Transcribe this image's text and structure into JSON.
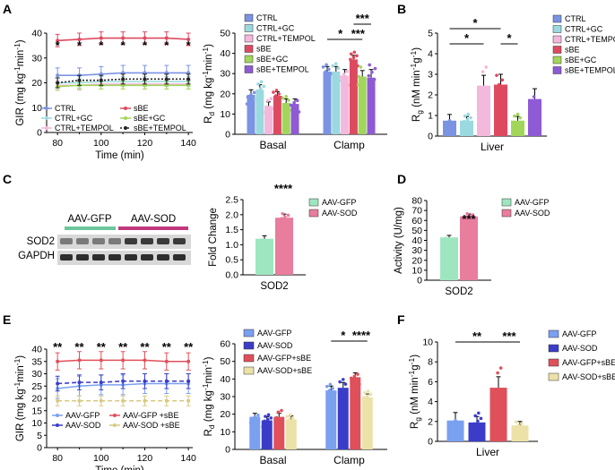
{
  "panels": {
    "A": "A",
    "B": "B",
    "C": "C",
    "D": "D",
    "E": "E",
    "F": "F"
  },
  "colors": {
    "blue": "#7b93e3",
    "lightblue": "#9ad9df",
    "pink": "#f4b8dc",
    "red": "#dd4a60",
    "green": "#a2d65a",
    "purple": "#8e5ad6",
    "gfp": "#9ee6bf",
    "sod": "#e87d9e",
    "e_gfp": "#7aa0f0",
    "e_sod": "#3b3dc8",
    "e_gfpsbe": "#e0505a",
    "e_sodsbe": "#ece2a8",
    "e_line_sodsbe": "#d8c880"
  },
  "chart_data": [
    {
      "id": "A_gir",
      "type": "line",
      "xlabel": "Time (min)",
      "ylabel": "GIR (mg kg-1min-1)",
      "ylabel_main": "GIR (mg kg",
      "ylabel_sup1": "-1",
      "ylabel_mid": "min",
      "ylabel_sup2": "-1",
      "ylabel_end": ")",
      "x": [
        80,
        90,
        100,
        110,
        120,
        130,
        140
      ],
      "xticks": [
        "80",
        "100",
        "120",
        "140"
      ],
      "xlim": [
        75,
        142
      ],
      "ylim": [
        0,
        40
      ],
      "yticks": [
        "0",
        "10",
        "20",
        "30",
        "40"
      ],
      "series": [
        {
          "name": "CTRL",
          "values": [
            23,
            23,
            23.5,
            24,
            24,
            24,
            24
          ],
          "err": [
            3,
            3,
            3,
            3,
            3,
            3,
            3
          ],
          "color": "#7b93e3",
          "dash": ""
        },
        {
          "name": "CTRL+GC",
          "values": [
            20,
            20,
            20.5,
            20.5,
            20.5,
            20.5,
            20.5
          ],
          "err": [
            2,
            2,
            2,
            2,
            2,
            2,
            2
          ],
          "color": "#9ad9df",
          "dash": ""
        },
        {
          "name": "CTRL+TEMPOL",
          "values": [
            19,
            19,
            19.5,
            19.5,
            19.5,
            19.5,
            19.5
          ],
          "err": [
            2,
            2,
            2,
            2,
            2,
            2,
            2
          ],
          "color": "#f4b8dc",
          "dash": ""
        },
        {
          "name": "sBE",
          "values": [
            37,
            37.5,
            38,
            38,
            38,
            38,
            37.5
          ],
          "err": [
            2.5,
            2.5,
            2.5,
            2.5,
            2.5,
            2.5,
            2.5
          ],
          "color": "#dd4a60",
          "dash": ""
        },
        {
          "name": "sBE+GC",
          "values": [
            18.5,
            19,
            19,
            19,
            19,
            19,
            19
          ],
          "err": [
            1.5,
            1.5,
            1.5,
            1.5,
            1.5,
            1.5,
            1.5
          ],
          "color": "#a2d65a",
          "dash": ""
        },
        {
          "name": "sBE+TEMPOL",
          "values": [
            20,
            21,
            21,
            21.5,
            21.5,
            21.5,
            21.5
          ],
          "err": [
            2,
            2,
            2,
            2,
            2,
            2,
            2
          ],
          "color": "#222222",
          "dash": "2,2"
        }
      ],
      "annotations": [
        "*",
        "*",
        "*",
        "*",
        "*",
        "*",
        "*"
      ]
    },
    {
      "id": "A_rd",
      "type": "bar",
      "ylabel": "Rd (mg kg-1min-1)",
      "ylabel_main": "R",
      "ylabel_sub": "d",
      "ylabel_rest": " (mg kg",
      "ylabel_sup1": "-1",
      "ylabel_mid": "min",
      "ylabel_sup2": "-1",
      "ylabel_end": ")",
      "categories": [
        "Basal",
        "Clamp"
      ],
      "ylim": [
        0,
        50
      ],
      "yticks": [
        "0",
        "10",
        "20",
        "30",
        "40",
        "50"
      ],
      "series": [
        {
          "name": "CTRL",
          "values": [
            19.5,
            31
          ],
          "err": [
            2.5,
            2.5
          ],
          "color": "#7b93e3"
        },
        {
          "name": "CTRL+GC",
          "values": [
            22,
            31
          ],
          "err": [
            2.5,
            2.5
          ],
          "color": "#9ad9df"
        },
        {
          "name": "CTRL+TEMPOL",
          "values": [
            14,
            29
          ],
          "err": [
            2,
            3
          ],
          "color": "#f4b8dc"
        },
        {
          "name": "sBE",
          "values": [
            19,
            37
          ],
          "err": [
            2,
            2
          ],
          "color": "#dd4a60"
        },
        {
          "name": "sBE+GC",
          "values": [
            15.5,
            28.5
          ],
          "err": [
            2,
            3
          ],
          "color": "#a2d65a"
        },
        {
          "name": "sBE+TEMPOL",
          "values": [
            15,
            28
          ],
          "err": [
            2.5,
            4
          ],
          "color": "#8e5ad6"
        }
      ],
      "annotations": [
        "*",
        "***",
        "***"
      ]
    },
    {
      "id": "B_rg",
      "type": "bar",
      "ylabel": "Rg (nM min-1g-1)",
      "ylabel_main": "R",
      "ylabel_sub": "g",
      "ylabel_rest": " (nM min",
      "ylabel_sup1": "-1",
      "ylabel_mid": "g",
      "ylabel_sup2": "-1",
      "ylabel_end": ")",
      "categories": [
        "Liver"
      ],
      "ylim": [
        0,
        5
      ],
      "yticks": [
        "0",
        "1",
        "2",
        "3",
        "4",
        "5"
      ],
      "series": [
        {
          "name": "CTRL",
          "values": [
            0.75
          ],
          "err": [
            0.3
          ],
          "color": "#7b93e3"
        },
        {
          "name": "CTRL+GC",
          "values": [
            0.75
          ],
          "err": [
            0.2
          ],
          "color": "#9ad9df"
        },
        {
          "name": "CTRL+TEMPOL",
          "values": [
            2.45
          ],
          "err": [
            0.5
          ],
          "color": "#f4b8dc"
        },
        {
          "name": "sBE",
          "values": [
            2.5
          ],
          "err": [
            0.5
          ],
          "color": "#dd4a60"
        },
        {
          "name": "sBE+GC",
          "values": [
            0.75
          ],
          "err": [
            0.2
          ],
          "color": "#a2d65a"
        },
        {
          "name": "sBE+TEMPOL",
          "values": [
            1.8
          ],
          "err": [
            0.5
          ],
          "color": "#8e5ad6"
        }
      ],
      "annotations": [
        "*",
        "*",
        "*"
      ]
    },
    {
      "id": "C_fold",
      "type": "bar",
      "ylabel": "Fold Change",
      "categories": [
        "SOD2"
      ],
      "ylim": [
        0,
        2.5
      ],
      "yticks": [
        "0.0",
        "0.5",
        "1.0",
        "1.5",
        "2.0",
        "2.5"
      ],
      "series": [
        {
          "name": "AAV-GFP",
          "values": [
            1.2
          ],
          "err": [
            0.1
          ],
          "color": "#9ee6bf"
        },
        {
          "name": "AAV-SOD",
          "values": [
            1.9
          ],
          "err": [
            0.12
          ],
          "color": "#e87d9e"
        }
      ],
      "annotations": [
        "****"
      ]
    },
    {
      "id": "D_activity",
      "type": "bar",
      "ylabel": "Activity (U/mg)",
      "categories": [
        "SOD2"
      ],
      "ylim": [
        0,
        80
      ],
      "yticks": [
        "0",
        "10",
        "20",
        "30",
        "40",
        "50",
        "60",
        "70",
        "80"
      ],
      "series": [
        {
          "name": "AAV-GFP",
          "values": [
            43
          ],
          "err": [
            2
          ],
          "color": "#9ee6bf"
        },
        {
          "name": "AAV-SOD",
          "values": [
            64
          ],
          "err": [
            2.5
          ],
          "color": "#e87d9e"
        }
      ],
      "annotations": [
        "***"
      ]
    },
    {
      "id": "E_gir",
      "type": "line",
      "xlabel": "Time (min)",
      "ylabel": "GIR (mg kg-1min-1)",
      "ylabel_main": "GIR (mg kg",
      "ylabel_sup1": "-1",
      "ylabel_mid": "min",
      "ylabel_sup2": "-1",
      "ylabel_end": ")",
      "x": [
        80,
        90,
        100,
        110,
        120,
        130,
        140
      ],
      "xticks": [
        "80",
        "100",
        "120",
        "140"
      ],
      "xlim": [
        75,
        142
      ],
      "ylim": [
        0,
        40
      ],
      "yticks": [
        "0",
        "5",
        "10",
        "15",
        "20",
        "25",
        "30",
        "35",
        "40"
      ],
      "series": [
        {
          "name": "AAV-GFP",
          "values": [
            24,
            25,
            25.5,
            25.5,
            26,
            26,
            26
          ],
          "err": [
            4,
            4,
            4,
            4,
            4,
            4,
            4
          ],
          "color": "#7aa0f0",
          "dash": ""
        },
        {
          "name": "AAV-GFP +sBE",
          "values": [
            35,
            35.5,
            35.5,
            35.5,
            35.5,
            35,
            35
          ],
          "err": [
            3.5,
            3.5,
            3.5,
            3.5,
            3.5,
            3.5,
            3.5
          ],
          "color": "#e0505a",
          "dash": ""
        },
        {
          "name": "AAV-SOD",
          "values": [
            26,
            26.5,
            26.5,
            27,
            27,
            27,
            27
          ],
          "err": [
            3,
            3,
            3,
            3,
            3,
            3,
            3
          ],
          "color": "#3b3dc8",
          "dash": "5,3"
        },
        {
          "name": "AAV-SOD +sBE",
          "values": [
            19,
            19,
            19,
            19,
            19,
            19,
            19
          ],
          "err": [
            2,
            2,
            2,
            2,
            2,
            2,
            2
          ],
          "color": "#d8c880",
          "dash": "5,3"
        }
      ],
      "annotations": [
        "**",
        "**",
        "**",
        "**",
        "**",
        "**",
        "**"
      ]
    },
    {
      "id": "E_rd",
      "type": "bar",
      "ylabel": "Rd (mg kg-1min-1)",
      "ylabel_main": "R",
      "ylabel_sub": "d",
      "ylabel_rest": " (mg kg",
      "ylabel_sup1": "-1",
      "ylabel_mid": "min",
      "ylabel_sup2": "-1",
      "ylabel_end": ")",
      "categories": [
        "Basal",
        "Clamp"
      ],
      "ylim": [
        0,
        60
      ],
      "yticks": [
        "0",
        "10",
        "20",
        "30",
        "40",
        "50",
        "60"
      ],
      "series": [
        {
          "name": "AAV-GFP",
          "values": [
            18.5,
            33.5
          ],
          "err": [
            2,
            2.5
          ],
          "color": "#7aa0f0"
        },
        {
          "name": "AAV-SOD",
          "values": [
            16.5,
            35
          ],
          "err": [
            2,
            3
          ],
          "color": "#3b3dc8"
        },
        {
          "name": "AAV-GFP+sBE",
          "values": [
            18.5,
            41
          ],
          "err": [
            2,
            2.5
          ],
          "color": "#e0505a"
        },
        {
          "name": "AAV-SOD+sBE",
          "values": [
            17,
            29.5
          ],
          "err": [
            2,
            2
          ],
          "color": "#ece2a8"
        }
      ],
      "annotations": [
        "*",
        "****"
      ]
    },
    {
      "id": "F_rg",
      "type": "bar",
      "ylabel": "Rg (nM min-1g-1)",
      "ylabel_main": "R",
      "ylabel_sub": "g",
      "ylabel_rest": " (nM min",
      "ylabel_sup1": "-1",
      "ylabel_mid": "g",
      "ylabel_sup2": "-1",
      "ylabel_end": ")",
      "categories": [
        "Liver"
      ],
      "ylim": [
        0,
        10
      ],
      "yticks": [
        "0",
        "2",
        "4",
        "6",
        "8",
        "10"
      ],
      "series": [
        {
          "name": "AAV-GFP",
          "values": [
            2.1
          ],
          "err": [
            0.8
          ],
          "color": "#7aa0f0"
        },
        {
          "name": "AAV-SOD",
          "values": [
            1.9
          ],
          "err": [
            0.6
          ],
          "color": "#3b3dc8"
        },
        {
          "name": "AAV-GFP+sBE",
          "values": [
            5.4
          ],
          "err": [
            1.1
          ],
          "color": "#e0505a"
        },
        {
          "name": "AAV-SOD+sBE",
          "values": [
            1.6
          ],
          "err": [
            0.4
          ],
          "color": "#ece2a8"
        }
      ],
      "annotations": [
        "**",
        "***"
      ]
    }
  ],
  "blot": {
    "lane_groups": [
      "AAV-GFP",
      "AAV-SOD"
    ],
    "rows": [
      "SOD2",
      "GAPDH"
    ]
  }
}
